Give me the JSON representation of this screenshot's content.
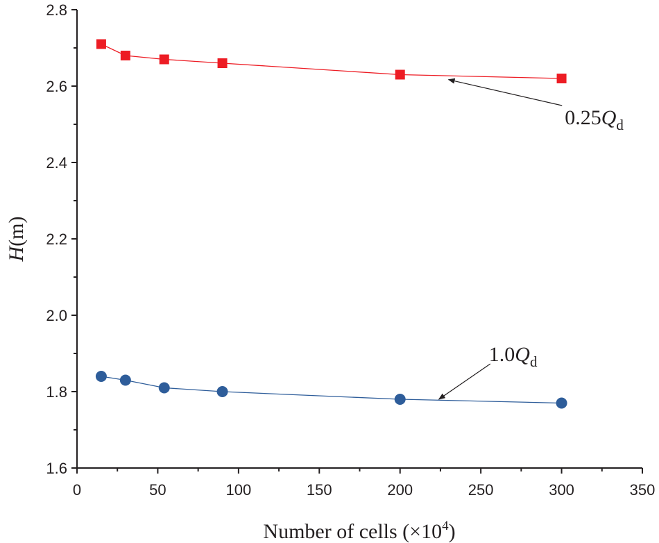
{
  "chart_data": {
    "type": "line",
    "title": "",
    "xlabel": "Number of cells (×10",
    "xlabel_exponent": "4",
    "xlabel_close": ")",
    "ylabel_var": "H",
    "ylabel_unit": "(m)",
    "xlim": [
      0,
      350
    ],
    "ylim": [
      1.6,
      2.8
    ],
    "x_ticks": [
      0,
      50,
      100,
      150,
      200,
      250,
      300,
      350
    ],
    "x_tick_labels": [
      "0",
      "50",
      "100",
      "150",
      "200",
      "250",
      "300",
      "350"
    ],
    "y_ticks": [
      1.6,
      1.8,
      2.0,
      2.2,
      2.4,
      2.6,
      2.8
    ],
    "y_tick_labels": [
      "1.6",
      "1.8",
      "2.0",
      "2.2",
      "2.4",
      "2.6",
      "2.8"
    ],
    "grid": false,
    "series": [
      {
        "name": "0.25Qd",
        "label_prefix": "0.25",
        "label_var": "Q",
        "label_sub": "d",
        "color": "#ed1c24",
        "marker": "square",
        "x": [
          15,
          30,
          54,
          90,
          200,
          300
        ],
        "values": [
          2.71,
          2.68,
          2.67,
          2.66,
          2.63,
          2.62
        ]
      },
      {
        "name": "1.0Qd",
        "label_prefix": "1.0",
        "label_var": "Q",
        "label_sub": "d",
        "color": "#2e5d9a",
        "marker": "circle",
        "x": [
          15,
          30,
          54,
          90,
          200,
          300
        ],
        "values": [
          1.84,
          1.83,
          1.81,
          1.8,
          1.78,
          1.77
        ]
      }
    ],
    "annotations": [
      {
        "series": 0,
        "text_at": [
          302,
          2.5
        ],
        "arrow_tip": [
          230,
          2.617
        ]
      },
      {
        "series": 1,
        "text_at": [
          255,
          1.88
        ],
        "arrow_tip": [
          224,
          1.78
        ]
      }
    ]
  }
}
